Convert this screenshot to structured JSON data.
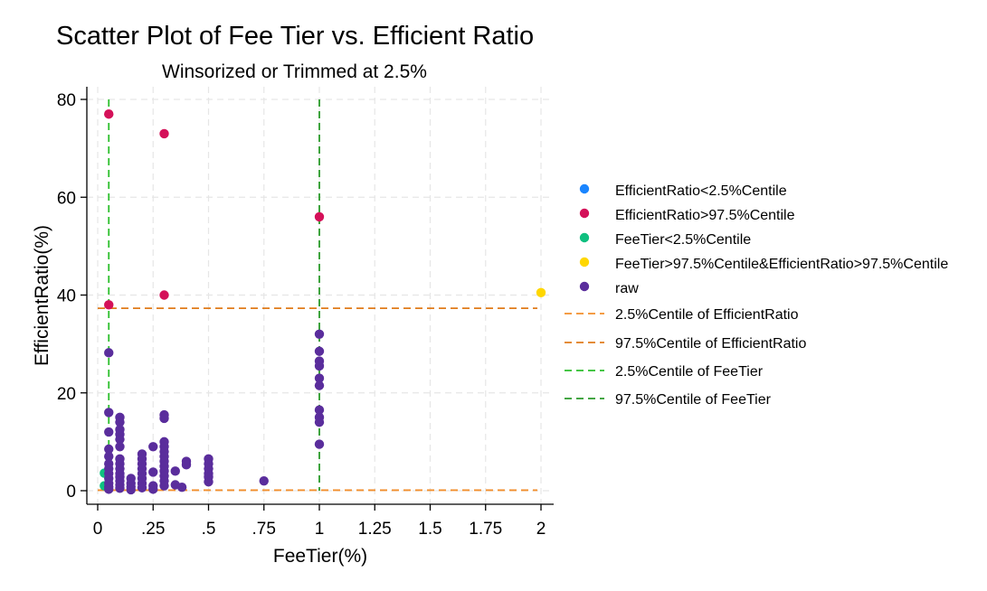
{
  "chart_data": {
    "type": "scatter",
    "title": "Scatter Plot of Fee Tier vs. Efficient Ratio",
    "subtitle": "Winsorized or Trimmed at 2.5%",
    "xlabel": "FeeTier(%)",
    "ylabel": "EfficientRatio(%)",
    "xlim": [
      0,
      2
    ],
    "ylim": [
      0,
      80
    ],
    "x_ticks": [
      {
        "value": 0,
        "label": "0"
      },
      {
        "value": 0.25,
        "label": ".25"
      },
      {
        "value": 0.5,
        "label": ".5"
      },
      {
        "value": 0.75,
        "label": ".75"
      },
      {
        "value": 1,
        "label": "1"
      },
      {
        "value": 1.25,
        "label": "1.25"
      },
      {
        "value": 1.5,
        "label": "1.5"
      },
      {
        "value": 1.75,
        "label": "1.75"
      },
      {
        "value": 2,
        "label": "2"
      }
    ],
    "y_ticks": [
      {
        "value": 0,
        "label": "0"
      },
      {
        "value": 20,
        "label": "20"
      },
      {
        "value": 40,
        "label": "40"
      },
      {
        "value": 60,
        "label": "60"
      },
      {
        "value": 80,
        "label": "80"
      }
    ],
    "grid": true,
    "legend_position": "right",
    "series": [
      {
        "name": "EfficientRatio<2.5%Centile",
        "kind": "points",
        "color": "#1a85ff",
        "points": []
      },
      {
        "name": "EfficientRatio>97.5%Centile",
        "kind": "points",
        "color": "#d41159",
        "points": [
          [
            0.05,
            77
          ],
          [
            0.3,
            73
          ],
          [
            1,
            56
          ],
          [
            0.3,
            40
          ],
          [
            0.05,
            38
          ]
        ]
      },
      {
        "name": "FeeTier<2.5%Centile",
        "kind": "points",
        "color": "#0fbf7f",
        "points": [
          [
            0.03,
            3.6
          ],
          [
            0.03,
            1.0
          ]
        ]
      },
      {
        "name": "FeeTier>97.5%Centile&EfficientRatio>97.5%Centile",
        "kind": "points",
        "color": "#ffd700",
        "points": [
          [
            2,
            40.5
          ]
        ]
      },
      {
        "name": "raw",
        "kind": "points",
        "color": "#5a2d9c",
        "points": [
          [
            0.05,
            28.2
          ],
          [
            0.05,
            16.0
          ],
          [
            0.05,
            12.0
          ],
          [
            0.05,
            8.5
          ],
          [
            0.05,
            7.0
          ],
          [
            0.05,
            5.5
          ],
          [
            0.05,
            4.5
          ],
          [
            0.05,
            3.5
          ],
          [
            0.05,
            2.5
          ],
          [
            0.05,
            1.5
          ],
          [
            0.05,
            0.8
          ],
          [
            0.05,
            0.3
          ],
          [
            0.1,
            15.0
          ],
          [
            0.1,
            14.0
          ],
          [
            0.1,
            12.5
          ],
          [
            0.1,
            11.5
          ],
          [
            0.1,
            10.5
          ],
          [
            0.1,
            9.0
          ],
          [
            0.1,
            6.5
          ],
          [
            0.1,
            5.5
          ],
          [
            0.1,
            4.5
          ],
          [
            0.1,
            3.5
          ],
          [
            0.1,
            2.8
          ],
          [
            0.1,
            2.0
          ],
          [
            0.1,
            1.2
          ],
          [
            0.1,
            0.5
          ],
          [
            0.15,
            2.5
          ],
          [
            0.15,
            1.5
          ],
          [
            0.15,
            0.8
          ],
          [
            0.15,
            0.2
          ],
          [
            0.2,
            7.5
          ],
          [
            0.2,
            6.5
          ],
          [
            0.2,
            5.5
          ],
          [
            0.2,
            4.5
          ],
          [
            0.2,
            3.5
          ],
          [
            0.2,
            2.5
          ],
          [
            0.2,
            1.5
          ],
          [
            0.2,
            0.6
          ],
          [
            0.25,
            9.0
          ],
          [
            0.25,
            3.8
          ],
          [
            0.25,
            1.0
          ],
          [
            0.25,
            0.3
          ],
          [
            0.3,
            15.5
          ],
          [
            0.3,
            14.8
          ],
          [
            0.3,
            10.0
          ],
          [
            0.3,
            9.0
          ],
          [
            0.3,
            8.0
          ],
          [
            0.3,
            7.0
          ],
          [
            0.3,
            6.0
          ],
          [
            0.3,
            5.0
          ],
          [
            0.3,
            4.0
          ],
          [
            0.3,
            3.0
          ],
          [
            0.3,
            2.0
          ],
          [
            0.3,
            1.0
          ],
          [
            0.35,
            4.0
          ],
          [
            0.35,
            1.2
          ],
          [
            0.38,
            0.7
          ],
          [
            0.4,
            6.0
          ],
          [
            0.4,
            5.3
          ],
          [
            0.5,
            6.5
          ],
          [
            0.5,
            5.5
          ],
          [
            0.5,
            4.5
          ],
          [
            0.5,
            3.5
          ],
          [
            0.5,
            2.8
          ],
          [
            0.5,
            1.8
          ],
          [
            0.75,
            2.0
          ],
          [
            1,
            32.0
          ],
          [
            1,
            28.5
          ],
          [
            1,
            26.5
          ],
          [
            1,
            25.5
          ],
          [
            1,
            23.0
          ],
          [
            1,
            21.5
          ],
          [
            1,
            16.5
          ],
          [
            1,
            15.0
          ],
          [
            1,
            14.0
          ],
          [
            1,
            9.5
          ]
        ]
      },
      {
        "name": "2.5%Centile of EfficientRatio",
        "kind": "hline",
        "value": 0.1,
        "color": "#f28e2b",
        "dash": "long"
      },
      {
        "name": "97.5%Centile of EfficientRatio",
        "kind": "hline",
        "value": 37.3,
        "color": "#e07b1a",
        "dash": "long"
      },
      {
        "name": "2.5%Centile of FeeTier",
        "kind": "vline",
        "value": 0.05,
        "color": "#2cbf2c",
        "dash": "long"
      },
      {
        "name": "97.5%Centile of FeeTier",
        "kind": "vline",
        "value": 1,
        "color": "#2a9a2a",
        "dash": "long"
      }
    ]
  }
}
